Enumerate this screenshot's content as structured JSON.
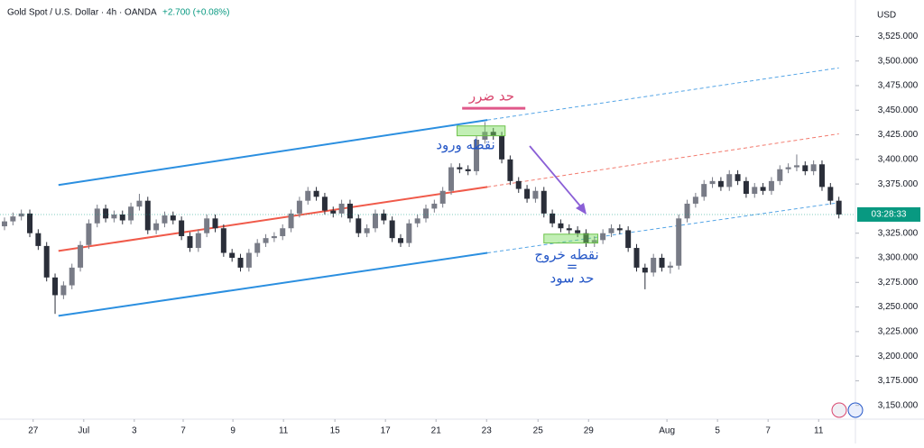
{
  "chart_data": {
    "type": "candlestick",
    "title": "Gold Spot / U.S. Dollar · 4h · OANDA",
    "change": "+2.700 (+0.08%)",
    "currency": "USD",
    "countdown": "03:28:33",
    "up_color": "#787b86",
    "down_color": "#2a2e39",
    "ylim": [
      3136,
      3562
    ],
    "yticks": [
      {
        "value": 3150,
        "label": "3,150.000"
      },
      {
        "value": 3175,
        "label": "3,175.000"
      },
      {
        "value": 3200,
        "label": "3,200.000"
      },
      {
        "value": 3225,
        "label": "3,225.000"
      },
      {
        "value": 3250,
        "label": "3,250.000"
      },
      {
        "value": 3275,
        "label": "3,275.000"
      },
      {
        "value": 3300,
        "label": "3,300.000"
      },
      {
        "value": 3325,
        "label": "3,325.000"
      },
      {
        "value": 3375,
        "label": "3,375.000"
      },
      {
        "value": 3400,
        "label": "3,400.000"
      },
      {
        "value": 3425,
        "label": "3,425.000"
      },
      {
        "value": 3450,
        "label": "3,450.000"
      },
      {
        "value": 3475,
        "label": "3,475.000"
      },
      {
        "value": 3500,
        "label": "3,500.000"
      },
      {
        "value": 3525,
        "label": "3,525.000"
      }
    ],
    "xticks": [
      {
        "value": 3.4,
        "label": "27"
      },
      {
        "value": 9.4,
        "label": "Jul"
      },
      {
        "value": 15.4,
        "label": "3"
      },
      {
        "value": 21.2,
        "label": "7"
      },
      {
        "value": 27.1,
        "label": "9"
      },
      {
        "value": 33.1,
        "label": "11"
      },
      {
        "value": 39.2,
        "label": "15"
      },
      {
        "value": 45.2,
        "label": "17"
      },
      {
        "value": 51.2,
        "label": "21"
      },
      {
        "value": 57.2,
        "label": "23"
      },
      {
        "value": 63.3,
        "label": "25"
      },
      {
        "value": 69.3,
        "label": "29"
      },
      {
        "value": 78.6,
        "label": "Aug"
      },
      {
        "value": 84.6,
        "label": "5"
      },
      {
        "value": 90.6,
        "label": "7"
      },
      {
        "value": 96.6,
        "label": "11"
      }
    ],
    "open": [
      3332,
      3337,
      3342,
      3345,
      3325,
      3312,
      3280,
      3262,
      3272,
      3290,
      3313,
      3335,
      3350,
      3340,
      3344,
      3338,
      3352,
      3358,
      3328,
      3335,
      3343,
      3338,
      3322,
      3310,
      3325,
      3340,
      3330,
      3305,
      3300,
      3290,
      3305,
      3315,
      3320,
      3322,
      3330,
      3345,
      3358,
      3368,
      3362,
      3348,
      3345,
      3355,
      3340,
      3325,
      3330,
      3345,
      3338,
      3320,
      3315,
      3335,
      3340,
      3350,
      3355,
      3368,
      3392,
      3390,
      3388,
      3420,
      3428,
      3424,
      3400,
      3378,
      3370,
      3360,
      3368,
      3345,
      3335,
      3330,
      3328,
      3325,
      3315,
      3318,
      3325,
      3330,
      3328,
      3310,
      3290,
      3285,
      3300,
      3290,
      3292,
      3340,
      3355,
      3362,
      3375,
      3378,
      3372,
      3385,
      3378,
      3365,
      3372,
      3368,
      3378,
      3390,
      3392,
      3394,
      3388,
      3395,
      3372,
      3358
    ],
    "high": [
      3341,
      3346,
      3349,
      3349,
      3329,
      3316,
      3284,
      3276,
      3294,
      3317,
      3339,
      3354,
      3354,
      3348,
      3348,
      3356,
      3365,
      3362,
      3339,
      3347,
      3347,
      3342,
      3326,
      3329,
      3344,
      3344,
      3334,
      3309,
      3304,
      3309,
      3319,
      3324,
      3326,
      3334,
      3349,
      3362,
      3372,
      3372,
      3366,
      3352,
      3359,
      3359,
      3344,
      3334,
      3349,
      3349,
      3342,
      3324,
      3339,
      3344,
      3354,
      3359,
      3372,
      3396,
      3396,
      3394,
      3424,
      3438,
      3432,
      3428,
      3404,
      3382,
      3374,
      3372,
      3372,
      3349,
      3339,
      3334,
      3332,
      3329,
      3322,
      3329,
      3334,
      3334,
      3332,
      3314,
      3294,
      3304,
      3304,
      3296,
      3344,
      3359,
      3366,
      3379,
      3382,
      3382,
      3389,
      3389,
      3382,
      3376,
      3376,
      3382,
      3394,
      3396,
      3405,
      3398,
      3399,
      3399,
      3376,
      3362
    ],
    "low": [
      3328,
      3333,
      3338,
      3321,
      3308,
      3276,
      3243,
      3258,
      3268,
      3286,
      3309,
      3331,
      3336,
      3336,
      3334,
      3334,
      3348,
      3324,
      3324,
      3331,
      3334,
      3318,
      3306,
      3306,
      3321,
      3326,
      3301,
      3296,
      3286,
      3286,
      3301,
      3311,
      3316,
      3318,
      3326,
      3341,
      3354,
      3358,
      3344,
      3341,
      3341,
      3336,
      3321,
      3321,
      3326,
      3334,
      3316,
      3311,
      3311,
      3331,
      3336,
      3346,
      3351,
      3364,
      3386,
      3384,
      3384,
      3416,
      3420,
      3396,
      3374,
      3366,
      3356,
      3356,
      3341,
      3331,
      3326,
      3324,
      3321,
      3311,
      3311,
      3314,
      3321,
      3324,
      3306,
      3286,
      3268,
      3281,
      3286,
      3284,
      3288,
      3336,
      3351,
      3358,
      3371,
      3368,
      3368,
      3374,
      3361,
      3361,
      3364,
      3364,
      3374,
      3386,
      3388,
      3384,
      3384,
      3368,
      3354,
      3340
    ],
    "close": [
      3337,
      3342,
      3345,
      3325,
      3312,
      3280,
      3262,
      3272,
      3290,
      3313,
      3335,
      3350,
      3340,
      3344,
      3338,
      3352,
      3358,
      3328,
      3335,
      3343,
      3338,
      3322,
      3310,
      3325,
      3340,
      3330,
      3305,
      3300,
      3290,
      3305,
      3315,
      3320,
      3322,
      3330,
      3345,
      3358,
      3368,
      3362,
      3348,
      3345,
      3355,
      3340,
      3325,
      3330,
      3345,
      3338,
      3320,
      3315,
      3335,
      3340,
      3350,
      3355,
      3368,
      3392,
      3390,
      3388,
      3420,
      3428,
      3424,
      3400,
      3378,
      3370,
      3360,
      3368,
      3345,
      3335,
      3330,
      3328,
      3325,
      3315,
      3318,
      3325,
      3330,
      3328,
      3310,
      3290,
      3285,
      3300,
      3290,
      3292,
      3340,
      3355,
      3362,
      3375,
      3378,
      3372,
      3385,
      3378,
      3365,
      3372,
      3368,
      3378,
      3390,
      3392,
      3394,
      3388,
      3395,
      3372,
      3358,
      3344
    ],
    "trendlines": [
      {
        "color": "#2b8fe0",
        "x": [
          6.4,
          57.3,
          99
        ],
        "y": [
          3374,
          3440,
          3493
        ]
      },
      {
        "color": "#f05a4a",
        "x": [
          6.4,
          57.3,
          99
        ],
        "y": [
          3307,
          3372,
          3426
        ]
      },
      {
        "color": "#2b8fe0",
        "x": [
          6.4,
          57.3,
          99
        ],
        "y": [
          3241,
          3305,
          3356
        ]
      }
    ],
    "zones": [
      {
        "x": [
          53.7,
          59.4
        ],
        "y": [
          3424,
          3434
        ]
      },
      {
        "x": [
          64,
          70.4
        ],
        "y": [
          3315,
          3324
        ]
      }
    ],
    "stop_line": {
      "x": [
        54.3,
        61.8
      ],
      "y": 3452
    },
    "annotations": [
      "حد ضرر",
      "نقطه ورود",
      "نقطه خروج",
      "=",
      "حد سود"
    ]
  }
}
